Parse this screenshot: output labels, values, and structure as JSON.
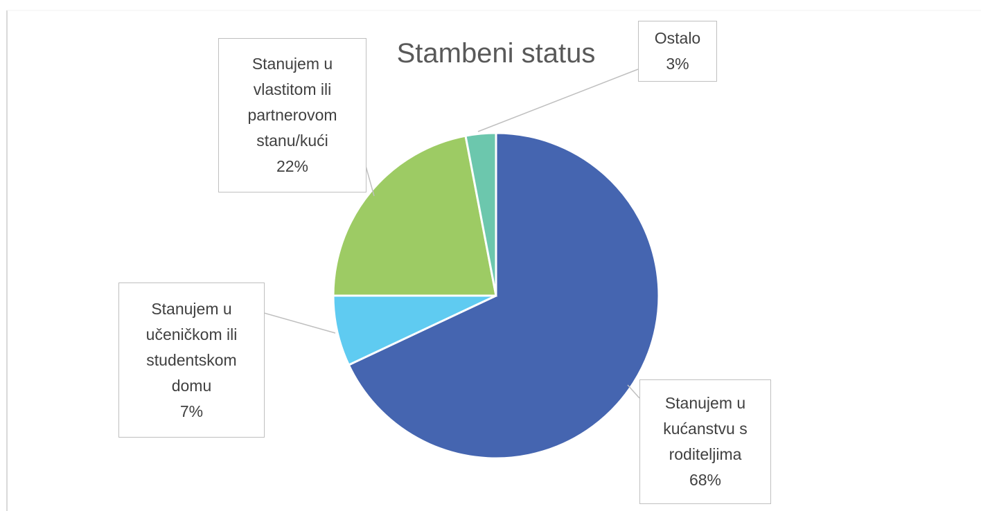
{
  "chart_data": {
    "type": "pie",
    "title": "Stambeni status",
    "categories": [
      "Stanujem u kućanstvu s roditeljima",
      "Stanujem u učeničkom ili studentskom domu",
      "Stanujem u vlastitom ili partnerovom stanu/kući",
      "Ostalo"
    ],
    "values": [
      68,
      7,
      22,
      3
    ],
    "value_labels": [
      "68%",
      "7%",
      "22%",
      "3%"
    ],
    "colors": [
      "#4565b0",
      "#5fcbf1",
      "#9dcb64",
      "#6cc7ad"
    ]
  }
}
